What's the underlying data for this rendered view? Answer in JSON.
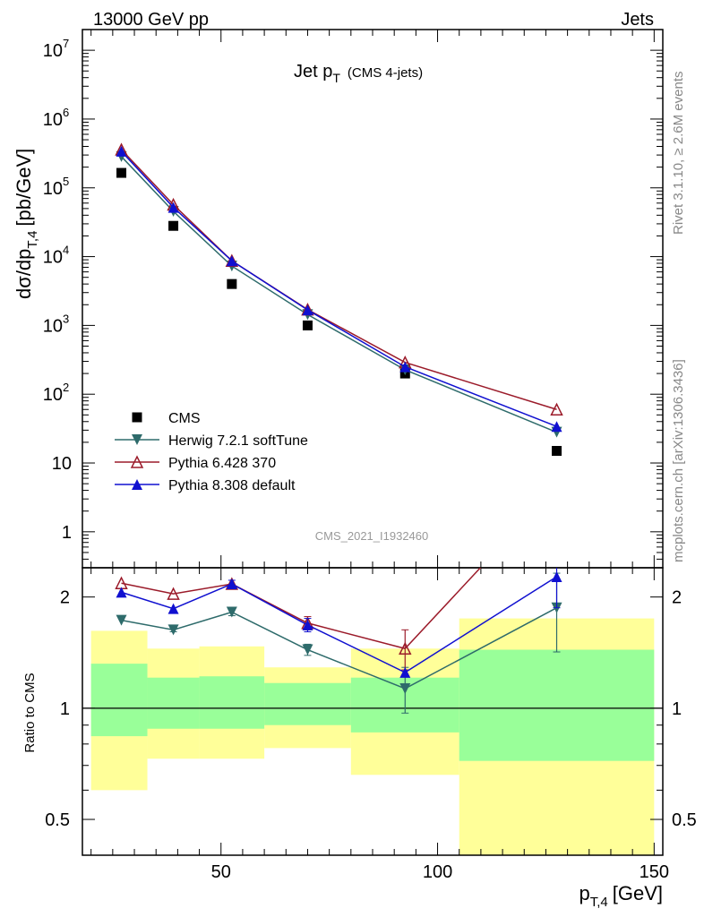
{
  "header": {
    "left": "13000 GeV pp",
    "right": "Jets"
  },
  "side_labels": {
    "rivet": "Rivet 3.1.10, ≥ 2.6M events",
    "mcplots": "mcplots.cern.ch [arXiv:1306.3436]"
  },
  "main_plot": {
    "title_main": "Jet p",
    "title_sub": "T",
    "title_note": "(CMS 4-jets)",
    "ylabel_prefix": "dσ/dp",
    "ylabel_sub": "T,4",
    "ylabel_unit": "[pb/GeV]",
    "watermark": "CMS_2021_I1932460",
    "ytick_labels": [
      "1",
      "10",
      "10",
      "10",
      "10",
      "10",
      "10",
      "10"
    ],
    "ytick_exponents": [
      "",
      "",
      "2",
      "3",
      "4",
      "5",
      "6",
      "7"
    ]
  },
  "ratio_plot": {
    "ylabel": "Ratio to CMS",
    "ytick_labels": [
      "0.5",
      "1",
      "2"
    ]
  },
  "x_axis": {
    "label_main": "p",
    "label_sub": "T,4",
    "label_unit": "[GeV]",
    "tick_labels": [
      "50",
      "100",
      "150"
    ]
  },
  "legend": [
    {
      "label": "CMS",
      "marker": "square",
      "color": "#000000"
    },
    {
      "label": "Herwig 7.2.1 softTune",
      "marker": "triangle-down",
      "color": "#2e6b6b"
    },
    {
      "label": "Pythia 6.428 370",
      "marker": "triangle-up-open",
      "color": "#9b1b2a"
    },
    {
      "label": "Pythia 8.308 default",
      "marker": "triangle-up",
      "color": "#1010d0"
    }
  ],
  "chart_data": {
    "type": "scatter",
    "log_y": true,
    "xlim": [
      18,
      152
    ],
    "ylim": [
      0.3,
      20000000
    ],
    "ratio_ylim": [
      0.4,
      2.4
    ],
    "x": [
      27,
      39,
      52.5,
      70,
      92.5,
      127.5
    ],
    "bin_edges": [
      20,
      33,
      45,
      60,
      80,
      105,
      150
    ],
    "series": [
      {
        "name": "CMS",
        "values": [
          165000,
          28000,
          4000,
          1000,
          200,
          15
        ],
        "ratio": [
          1,
          1,
          1,
          1,
          1,
          1
        ]
      },
      {
        "name": "Herwig 7.2.1 softTune",
        "values": [
          285000,
          45500,
          7300,
          1440,
          226,
          28
        ],
        "ratio": [
          1.73,
          1.63,
          1.82,
          1.44,
          1.13,
          1.87
        ],
        "ratio_err": [
          0,
          0.02,
          0.04,
          0.05,
          0.16,
          0.45
        ]
      },
      {
        "name": "Pythia 6.428 370",
        "values": [
          360000,
          57000,
          8700,
          1700,
          290,
          60
        ],
        "ratio": [
          2.18,
          2.04,
          2.17,
          1.7,
          1.45,
          4.0
        ],
        "ratio_err": [
          0,
          0,
          0,
          0.07,
          0.18,
          0
        ]
      },
      {
        "name": "Pythia 8.308 default",
        "values": [
          340000,
          52000,
          8700,
          1680,
          250,
          34
        ],
        "ratio": [
          2.06,
          1.86,
          2.17,
          1.68,
          1.25,
          2.27
        ],
        "ratio_err": [
          0,
          0,
          0.05,
          0.07,
          0,
          0.4
        ]
      }
    ],
    "uncertainty_bands": {
      "inner": [
        [
          0.84,
          1.32
        ],
        [
          0.88,
          1.21
        ],
        [
          0.88,
          1.22
        ],
        [
          0.9,
          1.17
        ],
        [
          0.86,
          1.21
        ],
        [
          0.72,
          1.44
        ]
      ],
      "outer": [
        [
          0.6,
          1.62
        ],
        [
          0.73,
          1.45
        ],
        [
          0.73,
          1.47
        ],
        [
          0.78,
          1.29
        ],
        [
          0.66,
          1.45
        ],
        [
          0.4,
          1.75
        ]
      ]
    }
  }
}
